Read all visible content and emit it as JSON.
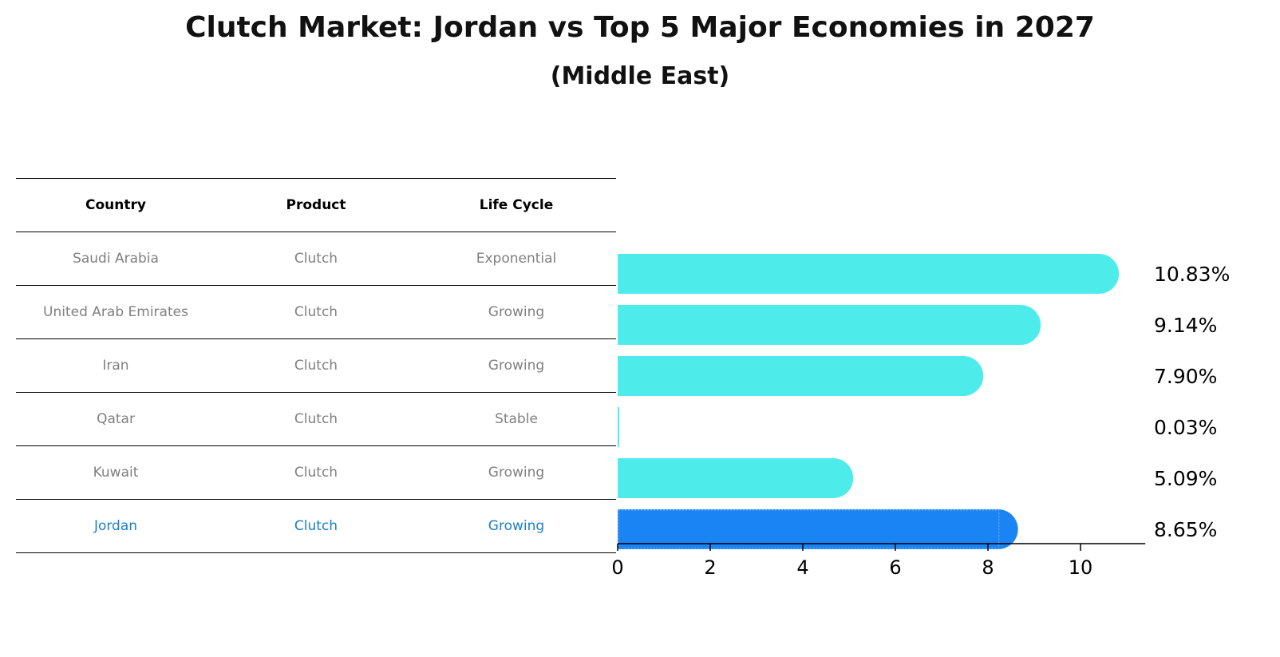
{
  "title": "Clutch Market: Jordan vs Top 5 Major Economies in 2027",
  "subtitle": "(Middle East)",
  "table": {
    "headers": [
      "Country",
      "Product",
      "Life Cycle"
    ],
    "rows": [
      [
        "Saudi Arabia",
        "Clutch",
        "Exponential"
      ],
      [
        "United Arab Emirates",
        "Clutch",
        "Growing"
      ],
      [
        "Iran",
        "Clutch",
        "Growing"
      ],
      [
        "Qatar",
        "Clutch",
        "Stable"
      ],
      [
        "Kuwait",
        "Clutch",
        "Growing"
      ],
      [
        "Jordan",
        "Clutch",
        "Growing"
      ]
    ]
  },
  "colors": {
    "bar": "#4deceb",
    "highlight": "#1a84f5",
    "highlight_text": "#1a80c8",
    "muted_text": "#808080"
  },
  "chart_data": {
    "type": "bar",
    "orientation": "horizontal",
    "categories": [
      "Saudi Arabia",
      "United Arab Emirates",
      "Iran",
      "Qatar",
      "Kuwait",
      "Jordan"
    ],
    "values": [
      10.83,
      9.14,
      7.9,
      0.03,
      5.09,
      8.65
    ],
    "data_labels": [
      "10.83%",
      "9.14%",
      "7.90%",
      "0.03%",
      "5.09%",
      "8.65%"
    ],
    "highlight": "Jordan",
    "xlim": [
      0,
      11.4
    ],
    "xticks": [
      0,
      2,
      4,
      6,
      8,
      10
    ],
    "xtick_labels": [
      "0",
      "2",
      "4",
      "6",
      "8",
      "10"
    ]
  }
}
